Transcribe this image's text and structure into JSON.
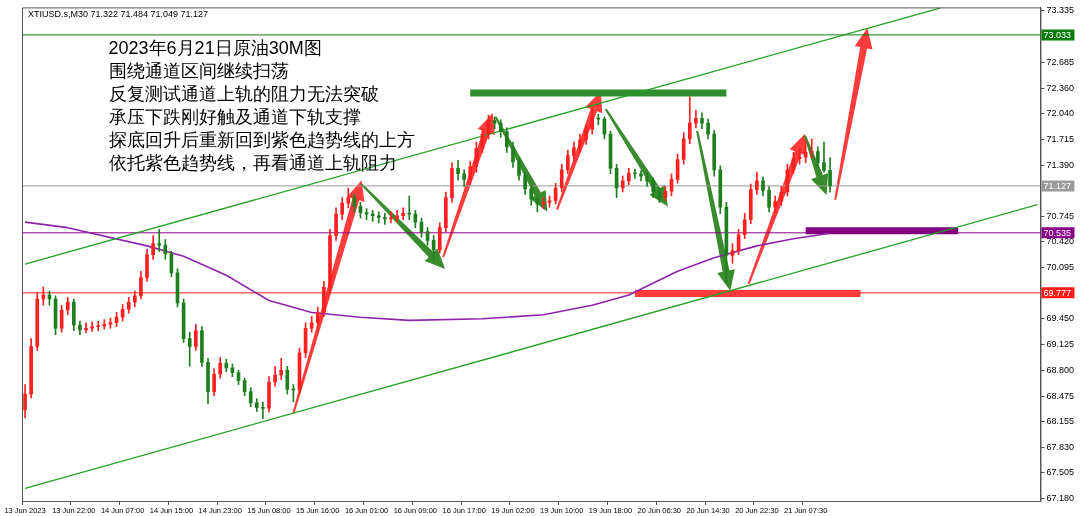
{
  "chart_data": {
    "type": "candlestick",
    "title": "2023年6月21日原油30M图",
    "subtitle": "XTIUSD.s,M30 71.322 71.484 71.049 71.127",
    "annotations": [
      "围绕通道区间继续扫荡",
      "反复测试通道上轨的阻力无法突破",
      "承压下跌刚好触及通道下轨支撑",
      "探底回升后重新回到紫色趋势线的上方",
      "依托紫色趋势线，再看通道上轨阻力"
    ],
    "categories": [
      "13 Jun 2023",
      null,
      null,
      null,
      null,
      null,
      null,
      null,
      "13 Jun 22:00",
      null,
      null,
      null,
      null,
      null,
      null,
      null,
      "14 Jun 07:00",
      null,
      null,
      null,
      null,
      null,
      null,
      null,
      "14 Jun 15:00",
      null,
      null,
      null,
      null,
      null,
      null,
      null,
      "14 Jun 23:00",
      null,
      null,
      null,
      null,
      null,
      null,
      null,
      "15 Jun 08:00",
      null,
      null,
      null,
      null,
      null,
      null,
      null,
      "15 Jun 16:00",
      null,
      null,
      null,
      null,
      null,
      null,
      null,
      "16 Jun 01:00",
      null,
      null,
      null,
      null,
      null,
      null,
      null,
      "16 Jun 09:00",
      null,
      null,
      null,
      null,
      null,
      null,
      null,
      "16 Jun 17:00",
      null,
      null,
      null,
      null,
      null,
      null,
      null,
      "19 Jun 02:00",
      null,
      null,
      null,
      null,
      null,
      null,
      null,
      "19 Jun 10:00",
      null,
      null,
      null,
      null,
      null,
      null,
      null,
      "19 Jun 18:00",
      null,
      null,
      null,
      null,
      null,
      null,
      null,
      "20 Jun 06:30",
      null,
      null,
      null,
      null,
      null,
      null,
      null,
      "20 Jun 14:30",
      null,
      null,
      null,
      null,
      null,
      null,
      null,
      "20 Jun 22:30",
      null,
      null,
      null,
      null,
      null,
      null,
      null,
      "21 Jun 07:30",
      null,
      null,
      null,
      null,
      null,
      null,
      null,
      null,
      null,
      null,
      null,
      null,
      null,
      null,
      null,
      null,
      null,
      null,
      null,
      null,
      null,
      null,
      null,
      null,
      null,
      null,
      null,
      null,
      null,
      null,
      null,
      null,
      null,
      null,
      null,
      null,
      null,
      null
    ],
    "ohlc": [
      [
        68.3,
        68.62,
        68.2,
        68.5
      ],
      [
        68.5,
        69.2,
        68.45,
        69.1
      ],
      [
        69.1,
        69.78,
        69.05,
        69.7
      ],
      [
        69.7,
        69.85,
        69.62,
        69.75
      ],
      [
        69.75,
        69.8,
        69.62,
        69.7
      ],
      [
        69.7,
        69.74,
        69.25,
        69.33
      ],
      [
        69.33,
        69.62,
        69.28,
        69.56
      ],
      [
        69.56,
        69.72,
        69.5,
        69.66
      ],
      [
        69.66,
        69.7,
        69.3,
        69.37
      ],
      [
        69.37,
        69.42,
        69.25,
        69.31
      ],
      [
        69.31,
        69.4,
        69.27,
        69.33
      ],
      [
        69.33,
        69.41,
        69.29,
        69.35
      ],
      [
        69.35,
        69.42,
        69.3,
        69.36
      ],
      [
        69.36,
        69.44,
        69.32,
        69.38
      ],
      [
        69.38,
        69.46,
        69.33,
        69.4
      ],
      [
        69.4,
        69.53,
        69.35,
        69.47
      ],
      [
        69.47,
        69.63,
        69.42,
        69.57
      ],
      [
        69.57,
        69.72,
        69.52,
        69.66
      ],
      [
        69.66,
        69.8,
        69.6,
        69.74
      ],
      [
        69.74,
        70.05,
        69.7,
        69.97
      ],
      [
        69.97,
        70.33,
        69.92,
        70.26
      ],
      [
        70.26,
        70.5,
        70.2,
        70.4
      ],
      [
        70.4,
        70.58,
        70.3,
        70.38
      ],
      [
        70.38,
        70.45,
        70.2,
        70.27
      ],
      [
        70.27,
        70.3,
        69.98,
        70.03
      ],
      [
        70.03,
        70.08,
        69.6,
        69.65
      ],
      [
        69.65,
        69.7,
        69.15,
        69.2
      ],
      [
        69.2,
        69.28,
        68.85,
        69.1
      ],
      [
        69.1,
        69.38,
        69.05,
        69.3
      ],
      [
        69.3,
        69.35,
        68.85,
        68.9
      ],
      [
        68.9,
        68.95,
        68.38,
        68.53
      ],
      [
        68.53,
        68.82,
        68.48,
        68.75
      ],
      [
        68.75,
        68.96,
        68.7,
        68.89
      ],
      [
        68.89,
        68.94,
        68.78,
        68.83
      ],
      [
        68.83,
        68.88,
        68.72,
        68.77
      ],
      [
        68.77,
        68.8,
        68.62,
        68.67
      ],
      [
        68.67,
        68.7,
        68.48,
        68.53
      ],
      [
        68.53,
        68.58,
        68.34,
        68.39
      ],
      [
        68.39,
        68.44,
        68.28,
        68.33
      ],
      [
        68.33,
        68.4,
        68.19,
        68.32
      ],
      [
        68.32,
        68.72,
        68.27,
        68.65
      ],
      [
        68.65,
        68.85,
        68.6,
        68.74
      ],
      [
        68.74,
        68.95,
        68.68,
        68.8
      ],
      [
        68.8,
        68.85,
        68.5,
        68.56
      ],
      [
        68.56,
        68.62,
        68.4,
        68.55
      ],
      [
        68.55,
        69.08,
        68.5,
        69.02
      ],
      [
        69.02,
        69.4,
        68.96,
        69.33
      ],
      [
        69.33,
        69.48,
        69.28,
        69.4
      ],
      [
        69.4,
        69.6,
        69.34,
        69.53
      ],
      [
        69.53,
        69.92,
        69.48,
        69.85
      ],
      [
        69.85,
        70.58,
        69.8,
        70.5
      ],
      [
        70.5,
        70.85,
        70.44,
        70.77
      ],
      [
        70.77,
        70.98,
        70.7,
        70.91
      ],
      [
        70.91,
        71.1,
        70.85,
        70.98
      ],
      [
        70.98,
        71.02,
        70.8,
        70.87
      ],
      [
        70.87,
        70.92,
        70.72,
        70.79
      ],
      [
        70.79,
        70.84,
        70.7,
        70.77
      ],
      [
        70.77,
        70.82,
        70.68,
        70.75
      ],
      [
        70.75,
        70.8,
        70.66,
        70.73
      ],
      [
        70.73,
        70.78,
        70.64,
        70.71
      ],
      [
        70.71,
        70.8,
        70.66,
        70.72
      ],
      [
        70.72,
        70.82,
        70.67,
        70.75
      ],
      [
        70.75,
        70.85,
        70.7,
        70.78
      ],
      [
        70.78,
        71.0,
        70.7,
        70.77
      ],
      [
        70.77,
        70.82,
        70.6,
        70.67
      ],
      [
        70.67,
        70.72,
        70.48,
        70.55
      ],
      [
        70.55,
        70.6,
        70.38,
        70.44
      ],
      [
        70.44,
        70.5,
        70.2,
        70.32
      ],
      [
        70.32,
        70.66,
        70.28,
        70.6
      ],
      [
        70.6,
        71.05,
        70.55,
        70.98
      ],
      [
        70.98,
        71.42,
        70.92,
        71.35
      ],
      [
        71.35,
        71.45,
        71.2,
        71.28
      ],
      [
        71.28,
        71.33,
        71.12,
        71.21
      ],
      [
        71.21,
        71.44,
        71.15,
        71.37
      ],
      [
        71.37,
        71.68,
        71.3,
        71.6
      ],
      [
        71.6,
        71.85,
        71.55,
        71.78
      ],
      [
        71.78,
        72.02,
        71.72,
        71.95
      ],
      [
        71.95,
        72.0,
        71.85,
        71.92
      ],
      [
        71.92,
        71.96,
        71.74,
        71.81
      ],
      [
        71.81,
        71.86,
        71.55,
        71.62
      ],
      [
        71.62,
        71.68,
        71.36,
        71.43
      ],
      [
        71.43,
        71.48,
        71.2,
        71.26
      ],
      [
        71.26,
        71.3,
        71.02,
        71.09
      ],
      [
        71.09,
        71.14,
        70.88,
        70.96
      ],
      [
        70.96,
        71.0,
        70.8,
        70.9
      ],
      [
        70.9,
        70.98,
        70.84,
        70.92
      ],
      [
        70.92,
        71.0,
        70.86,
        70.94
      ],
      [
        70.94,
        71.16,
        70.9,
        71.1
      ],
      [
        71.1,
        71.4,
        71.05,
        71.33
      ],
      [
        71.33,
        71.58,
        71.28,
        71.51
      ],
      [
        71.51,
        71.68,
        71.45,
        71.61
      ],
      [
        71.61,
        71.78,
        71.55,
        71.71
      ],
      [
        71.71,
        71.9,
        71.65,
        71.84
      ],
      [
        71.84,
        72.1,
        71.78,
        71.98
      ],
      [
        71.98,
        72.03,
        71.9,
        71.97
      ],
      [
        71.97,
        72.0,
        71.72,
        71.78
      ],
      [
        71.78,
        71.82,
        71.28,
        71.35
      ],
      [
        71.35,
        71.4,
        70.98,
        71.1
      ],
      [
        71.1,
        71.25,
        71.05,
        71.19
      ],
      [
        71.19,
        71.35,
        71.14,
        71.29
      ],
      [
        71.29,
        71.34,
        71.22,
        71.28
      ],
      [
        71.28,
        71.32,
        71.19,
        71.25
      ],
      [
        71.25,
        71.3,
        71.12,
        71.19
      ],
      [
        71.19,
        71.23,
        70.98,
        71.05
      ],
      [
        71.05,
        71.1,
        70.92,
        70.98
      ],
      [
        70.98,
        71.12,
        70.94,
        71.06
      ],
      [
        71.06,
        71.28,
        71.0,
        71.21
      ],
      [
        71.21,
        71.53,
        71.16,
        71.46
      ],
      [
        71.46,
        71.8,
        71.4,
        71.72
      ],
      [
        71.72,
        72.25,
        71.66,
        71.92
      ],
      [
        71.92,
        72.08,
        71.86,
        71.98
      ],
      [
        71.98,
        72.05,
        71.85,
        71.92
      ],
      [
        71.92,
        71.97,
        71.72,
        71.78
      ],
      [
        71.78,
        71.83,
        71.25,
        71.33
      ],
      [
        71.33,
        71.38,
        70.78,
        70.86
      ],
      [
        70.86,
        70.92,
        69.9,
        70.25
      ],
      [
        70.25,
        70.4,
        70.15,
        70.31
      ],
      [
        70.31,
        70.58,
        70.26,
        70.51
      ],
      [
        70.51,
        70.78,
        70.46,
        70.7
      ],
      [
        70.7,
        71.15,
        70.65,
        71.08
      ],
      [
        71.08,
        71.3,
        71.02,
        71.19
      ],
      [
        71.19,
        71.24,
        71.0,
        71.07
      ],
      [
        71.07,
        71.12,
        70.8,
        70.86
      ],
      [
        70.86,
        71.0,
        70.8,
        70.93
      ],
      [
        70.93,
        71.12,
        70.88,
        71.05
      ],
      [
        71.05,
        71.4,
        71.0,
        71.33
      ],
      [
        71.33,
        71.55,
        71.28,
        71.47
      ],
      [
        71.47,
        71.6,
        71.4,
        71.49
      ],
      [
        71.49,
        71.7,
        71.42,
        71.55
      ],
      [
        71.55,
        71.72,
        71.48,
        71.56
      ],
      [
        71.56,
        71.62,
        71.36,
        71.42
      ],
      [
        71.42,
        71.68,
        71.3,
        71.322
      ],
      [
        71.322,
        71.484,
        71.049,
        71.127
      ],
      null,
      null,
      null,
      null,
      null,
      null,
      null,
      null,
      null,
      null,
      null,
      null,
      null,
      null,
      null,
      null,
      null,
      null,
      null,
      null,
      null,
      null,
      null,
      null,
      null,
      null,
      null,
      null,
      null,
      null,
      null,
      null,
      null,
      null
    ],
    "colors": [
      "#ff2020",
      "#ff2020",
      "#ff2020",
      "#ff2020",
      "#1e7f1e",
      "#1e7f1e",
      "#ff2020",
      "#ff2020",
      "#1e7f1e",
      "#1e7f1e",
      "#ff2020",
      "#ff2020",
      "#ff2020",
      "#ff2020",
      "#ff2020",
      "#ff2020",
      "#ff2020",
      "#ff2020",
      "#ff2020",
      "#ff2020",
      "#ff2020",
      "#ff2020",
      "#1e7f1e",
      "#1e7f1e",
      "#1e7f1e",
      "#1e7f1e",
      "#1e7f1e",
      "#1e7f1e",
      "#ff2020",
      "#1e7f1e",
      "#1e7f1e",
      "#ff2020",
      "#ff2020",
      "#1e7f1e",
      "#1e7f1e",
      "#1e7f1e",
      "#1e7f1e",
      "#1e7f1e",
      "#1e7f1e",
      "#1e7f1e",
      "#ff2020",
      "#ff2020",
      "#ff2020",
      "#1e7f1e",
      "#1e7f1e",
      "#ff2020",
      "#ff2020",
      "#ff2020",
      "#ff2020",
      "#ff2020",
      "#ff2020",
      "#ff2020",
      "#ff2020",
      "#ff2020",
      "#1e7f1e",
      "#1e7f1e",
      "#1e7f1e",
      "#1e7f1e",
      "#1e7f1e",
      "#1e7f1e",
      "#ff2020",
      "#ff2020",
      "#ff2020",
      "#1e7f1e",
      "#1e7f1e",
      "#1e7f1e",
      "#1e7f1e",
      "#1e7f1e",
      "#ff2020",
      "#ff2020",
      "#ff2020",
      "#1e7f1e",
      "#1e7f1e",
      "#ff2020",
      "#ff2020",
      "#ff2020",
      "#ff2020",
      "#1e7f1e",
      "#1e7f1e",
      "#1e7f1e",
      "#1e7f1e",
      "#1e7f1e",
      "#1e7f1e",
      "#1e7f1e",
      "#1e7f1e",
      "#ff2020",
      "#ff2020",
      "#ff2020",
      "#ff2020",
      "#ff2020",
      "#ff2020",
      "#ff2020",
      "#ff2020",
      "#ff2020",
      "#1e7f1e",
      "#1e7f1e",
      "#1e7f1e",
      "#1e7f1e",
      "#ff2020",
      "#ff2020",
      "#1e7f1e",
      "#1e7f1e",
      "#1e7f1e",
      "#1e7f1e",
      "#1e7f1e",
      "#ff2020",
      "#ff2020",
      "#ff2020",
      "#ff2020",
      "#ff2020",
      "#ff2020",
      "#1e7f1e",
      "#1e7f1e",
      "#1e7f1e",
      "#1e7f1e",
      "#1e7f1e",
      "#ff2020",
      "#ff2020",
      "#ff2020",
      "#ff2020",
      "#ff2020",
      "#1e7f1e",
      "#1e7f1e",
      "#ff2020",
      "#ff2020",
      "#ff2020",
      "#ff2020",
      "#ff2020",
      "#ff2020",
      "#ff2020",
      "#1e7f1e",
      "#1e7f1e",
      "#1e7f1e",
      null,
      null,
      null,
      null,
      null,
      null,
      null,
      null,
      null,
      null,
      null,
      null,
      null,
      null,
      null,
      null,
      null,
      null,
      null,
      null,
      null,
      null,
      null,
      null,
      null,
      null,
      null,
      null,
      null,
      null,
      null,
      null,
      null,
      null
    ],
    "series": [
      {
        "type": "line",
        "color": "#22a022",
        "values": [
          70.14,
          null,
          null,
          null,
          null,
          null,
          null,
          null,
          null,
          null,
          null,
          null,
          null,
          null,
          null,
          null,
          null,
          null,
          null,
          null,
          null,
          null,
          null,
          null,
          null,
          null,
          null,
          null,
          null,
          null,
          null,
          null,
          null,
          null,
          null,
          null,
          null,
          null,
          null,
          null,
          null,
          null,
          null,
          null,
          null,
          null,
          null,
          null,
          null,
          null,
          null,
          null,
          null,
          null,
          null,
          null,
          null,
          null,
          null,
          null,
          null,
          null,
          null,
          null,
          null,
          null,
          null,
          null,
          null,
          null,
          null,
          null,
          null,
          null,
          null,
          null,
          null,
          null,
          null,
          null,
          null,
          null,
          null,
          null,
          null,
          null,
          null,
          null,
          null,
          null,
          null,
          null,
          null,
          null,
          null,
          null,
          null,
          null,
          null,
          null,
          null,
          null,
          null,
          null,
          null,
          null,
          null,
          null,
          null,
          null,
          null,
          null,
          null,
          null,
          null,
          null,
          null,
          null,
          null,
          null,
          null,
          null,
          null,
          null,
          null,
          null,
          null,
          null,
          null,
          null,
          null,
          null,
          null,
          null,
          null,
          null,
          null,
          null,
          null,
          null,
          null,
          null,
          null,
          null,
          null,
          null,
          null,
          null,
          null,
          null,
          73.37,
          null,
          null,
          null,
          null,
          null,
          null,
          null,
          null,
          null,
          null,
          null,
          null,
          null,
          null,
          null,
          null
        ]
      },
      {
        "type": "line",
        "color": "#22a022",
        "values": [
          67.31,
          null,
          null,
          null,
          null,
          null,
          null,
          null,
          null,
          null,
          null,
          null,
          null,
          null,
          null,
          null,
          null,
          null,
          null,
          null,
          null,
          null,
          null,
          null,
          null,
          null,
          null,
          null,
          null,
          null,
          null,
          null,
          null,
          null,
          null,
          null,
          null,
          null,
          null,
          null,
          null,
          null,
          null,
          null,
          null,
          null,
          null,
          null,
          null,
          null,
          null,
          null,
          null,
          null,
          null,
          null,
          null,
          null,
          null,
          null,
          null,
          null,
          null,
          null,
          null,
          null,
          null,
          null,
          null,
          null,
          null,
          null,
          null,
          null,
          null,
          null,
          null,
          null,
          null,
          null,
          null,
          null,
          null,
          null,
          null,
          null,
          null,
          null,
          null,
          null,
          null,
          null,
          null,
          null,
          null,
          null,
          null,
          null,
          null,
          null,
          null,
          null,
          null,
          null,
          null,
          null,
          null,
          null,
          null,
          null,
          null,
          null,
          null,
          null,
          null,
          null,
          null,
          null,
          null,
          null,
          null,
          null,
          null,
          null,
          null,
          null,
          null,
          null,
          null,
          null,
          null,
          null,
          null,
          null,
          null,
          null,
          null,
          null,
          null,
          null,
          null,
          null,
          null,
          null,
          null,
          null,
          null,
          null,
          null,
          null,
          null,
          null,
          null,
          null,
          null,
          null,
          null,
          null,
          null,
          null,
          null,
          null,
          null,
          null,
          null,
          null,
          70.89
        ]
      },
      {
        "type": "line",
        "color": "#8e24aa",
        "values": [
          70.67,
          null,
          null,
          null,
          null,
          null,
          null,
          70.6,
          null,
          null,
          null,
          null,
          null,
          null,
          null,
          null,
          null,
          null,
          null,
          null,
          70.37,
          null,
          null,
          null,
          null,
          null,
          70.24,
          null,
          null,
          null,
          null,
          null,
          null,
          70.0,
          null,
          null,
          null,
          null,
          null,
          null,
          69.68,
          null,
          null,
          null,
          null,
          null,
          null,
          69.53,
          null,
          null,
          null,
          null,
          null,
          null,
          null,
          69.47,
          null,
          null,
          null,
          null,
          null,
          null,
          null,
          69.43,
          null,
          null,
          null,
          null,
          null,
          null,
          null,
          null,
          null,
          null,
          null,
          69.45,
          null,
          null,
          null,
          null,
          null,
          null,
          null,
          null,
          null,
          69.5,
          null,
          null,
          null,
          null,
          null,
          null,
          null,
          69.62,
          null,
          null,
          null,
          null,
          null,
          69.75,
          null,
          null,
          null,
          null,
          null,
          null,
          null,
          70.05,
          null,
          null,
          null,
          null,
          null,
          70.22,
          null,
          null,
          null,
          null,
          null,
          null,
          70.37,
          null,
          null,
          null,
          null,
          null,
          70.46,
          null,
          null,
          null,
          null,
          null,
          70.53,
          null,
          null,
          null,
          null,
          null,
          null,
          null,
          null,
          null,
          null,
          null,
          null,
          null,
          null,
          null,
          null,
          null,
          null,
          null,
          null,
          null,
          null,
          null,
          null,
          null,
          null,
          null,
          null,
          null,
          null,
          null,
          null,
          null,
          null
        ]
      },
      {
        "type": "line",
        "color": "#2e8b2e",
        "values": [
          null,
          null,
          null,
          null,
          null,
          null,
          null,
          null,
          null,
          null,
          null,
          null,
          null,
          null,
          null,
          null,
          null,
          null,
          null,
          null,
          null,
          null,
          null,
          null,
          null,
          null,
          null,
          null,
          null,
          null,
          null,
          null,
          null,
          null,
          null,
          null,
          null,
          null,
          null,
          null,
          null,
          null,
          null,
          null,
          null,
          null,
          null,
          null,
          null,
          null,
          null,
          null,
          null,
          null,
          null,
          null,
          null,
          null,
          null,
          null,
          null,
          null,
          null,
          null,
          null,
          null,
          null,
          null,
          null,
          null,
          null,
          null,
          null,
          72.3,
          null,
          null,
          null,
          null,
          null,
          null,
          null,
          null,
          null,
          null,
          null,
          null,
          null,
          null,
          null,
          null,
          null,
          null,
          null,
          null,
          null,
          null,
          null,
          null,
          null,
          null,
          null,
          null,
          null,
          null,
          null,
          null,
          null,
          null,
          null,
          null,
          null,
          null,
          null,
          null,
          null,
          72.3,
          null,
          null,
          null,
          null,
          null,
          null,
          null,
          null,
          null,
          null,
          null,
          null,
          null,
          null,
          null,
          null,
          null,
          null,
          null,
          null,
          null,
          null,
          null,
          null,
          null,
          null,
          null,
          null,
          null,
          null,
          null,
          null,
          null,
          null,
          null,
          null,
          null,
          null,
          null,
          null,
          null,
          null,
          null,
          null,
          null,
          null,
          null,
          null,
          null,
          null,
          null
        ]
      },
      {
        "type": "line",
        "color": "#ff3b3b",
        "values": [
          null,
          null,
          null,
          null,
          null,
          null,
          null,
          null,
          null,
          null,
          null,
          null,
          null,
          null,
          null,
          null,
          null,
          null,
          null,
          null,
          null,
          null,
          null,
          null,
          null,
          null,
          null,
          null,
          null,
          null,
          null,
          null,
          null,
          null,
          null,
          null,
          null,
          null,
          null,
          null,
          null,
          null,
          null,
          null,
          null,
          null,
          null,
          null,
          null,
          null,
          null,
          null,
          null,
          null,
          null,
          null,
          null,
          null,
          null,
          null,
          null,
          null,
          null,
          null,
          null,
          null,
          null,
          null,
          null,
          null,
          null,
          null,
          null,
          null,
          null,
          null,
          null,
          null,
          null,
          null,
          null,
          null,
          null,
          null,
          null,
          null,
          null,
          null,
          null,
          null,
          null,
          null,
          null,
          null,
          null,
          null,
          null,
          null,
          null,
          null,
          69.77,
          null,
          null,
          null,
          null,
          null,
          null,
          null,
          null,
          null,
          null,
          null,
          null,
          null,
          null,
          null,
          null,
          null,
          null,
          null,
          null,
          null,
          null,
          null,
          null,
          null,
          null,
          null,
          null,
          null,
          null,
          null,
          null,
          null,
          null,
          null,
          null,
          69.77,
          null,
          null,
          null,
          null,
          null,
          null,
          null,
          null,
          null,
          null,
          null,
          null,
          null,
          null,
          null,
          null,
          null,
          null,
          null,
          null,
          null,
          null,
          null,
          null,
          null,
          null,
          null,
          null,
          null
        ]
      },
      {
        "type": "line",
        "color": "#800080",
        "values": [
          null,
          null,
          null,
          null,
          null,
          null,
          null,
          null,
          null,
          null,
          null,
          null,
          null,
          null,
          null,
          null,
          null,
          null,
          null,
          null,
          null,
          null,
          null,
          null,
          null,
          null,
          null,
          null,
          null,
          null,
          null,
          null,
          null,
          null,
          null,
          null,
          null,
          null,
          null,
          null,
          null,
          null,
          null,
          null,
          null,
          null,
          null,
          null,
          null,
          null,
          null,
          null,
          null,
          null,
          null,
          null,
          null,
          null,
          null,
          null,
          null,
          null,
          null,
          null,
          null,
          null,
          null,
          null,
          null,
          null,
          null,
          null,
          null,
          null,
          null,
          null,
          null,
          null,
          null,
          null,
          null,
          null,
          null,
          null,
          null,
          null,
          null,
          null,
          null,
          null,
          null,
          null,
          null,
          null,
          null,
          null,
          null,
          null,
          null,
          null,
          null,
          null,
          null,
          null,
          null,
          null,
          null,
          null,
          null,
          null,
          null,
          null,
          null,
          null,
          null,
          null,
          null,
          null,
          null,
          null,
          null,
          null,
          null,
          null,
          null,
          null,
          null,
          null,
          70.56,
          null,
          null,
          null,
          null,
          null,
          null,
          null,
          null,
          null,
          null,
          null,
          null,
          null,
          null,
          null,
          null,
          null,
          null,
          null,
          null,
          null,
          null,
          null,
          null,
          70.56,
          null,
          null,
          null,
          null,
          null,
          null,
          null,
          null,
          null,
          null,
          null,
          null,
          null
        ]
      }
    ],
    "ref_lines": [
      {
        "axis": "y",
        "value": 73.033,
        "label": "73.033",
        "color": "#0a7a0a"
      },
      {
        "axis": "y",
        "value": 71.127,
        "label": "71.127",
        "color": "#9a9a9a"
      },
      {
        "axis": "y",
        "value": 70.535,
        "label": "70.535",
        "color": "#8a008a"
      },
      {
        "axis": "y",
        "value": 69.777,
        "label": "69.777",
        "color": "#ff1a1a"
      }
    ],
    "ylim": [
      67.15,
      73.38
    ],
    "yticks": [
      {
        "value": 67.18,
        "label": "67.180"
      },
      {
        "value": 67.505,
        "label": "67.505"
      },
      {
        "value": 67.83,
        "label": "67.830"
      },
      {
        "value": 68.155,
        "label": "68.155"
      },
      {
        "value": 68.475,
        "label": "68.475"
      },
      {
        "value": 68.8,
        "label": "68.800"
      },
      {
        "value": 69.125,
        "label": "69.125"
      },
      {
        "value": 69.45,
        "label": "69.450"
      },
      {
        "value": 70.095,
        "label": "70.095"
      },
      {
        "value": 70.42,
        "label": "70.420"
      },
      {
        "value": 70.745,
        "label": "70.745"
      },
      {
        "value": 71.39,
        "label": "71.390"
      },
      {
        "value": 71.715,
        "label": "71.715"
      },
      {
        "value": 72.04,
        "label": "72.040"
      },
      {
        "value": 72.36,
        "label": "72.360"
      },
      {
        "value": 72.685,
        "label": "72.685"
      },
      {
        "value": 73.335,
        "label": "73.335"
      }
    ],
    "grid": false,
    "marker": "none"
  }
}
